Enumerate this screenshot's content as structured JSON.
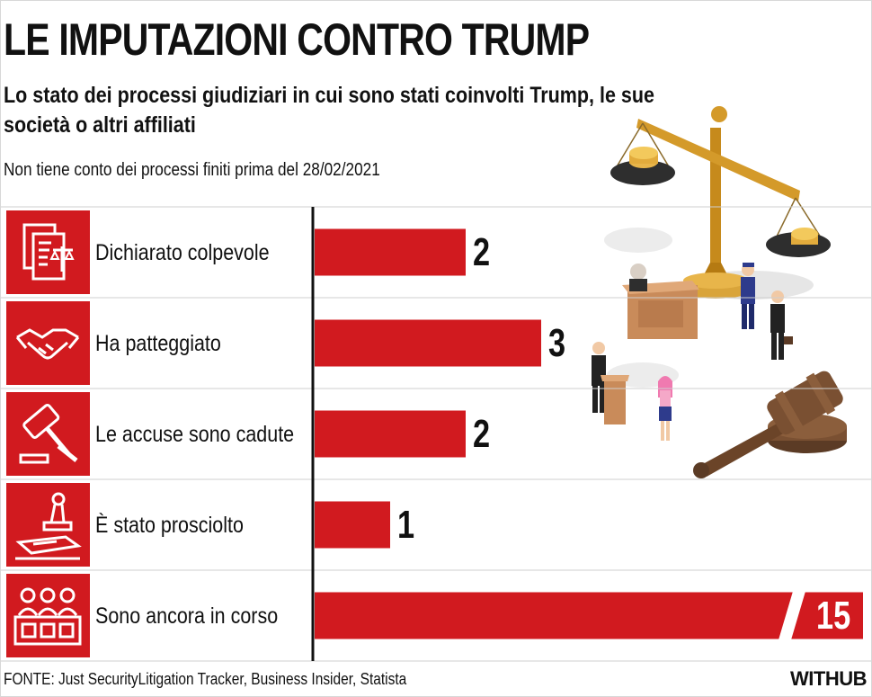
{
  "title": "LE IMPUTAZIONI CONTRO TRUMP",
  "subtitle": "Lo stato dei processi giudiziari in cui sono stati coinvolti Trump, le sue società o altri affiliati",
  "note": "Non tiene conto dei processi finiti prima del 28/02/2021",
  "source": "FONTE: Just SecurityLitigation Tracker, Business Insider, Statista",
  "logo": "WITHUB",
  "colors": {
    "bar": "#d11a1f",
    "axis": "#111111",
    "grid": "#cfcfcf"
  },
  "chart_data": {
    "type": "bar",
    "orientation": "horizontal",
    "categories": [
      "Dichiarato colpevole",
      "Ha patteggiato",
      "Le accuse sono cadute",
      "È stato prosciolto",
      "Sono ancora in corso"
    ],
    "values": [
      2,
      3,
      2,
      1,
      15
    ],
    "value_labels": [
      "2",
      "3",
      "2",
      "1",
      "15"
    ],
    "icons": [
      "document-scales-icon",
      "handshake-icon",
      "gavel-icon",
      "stamp-icon",
      "jury-icon"
    ],
    "last_bar_truncated": true
  }
}
